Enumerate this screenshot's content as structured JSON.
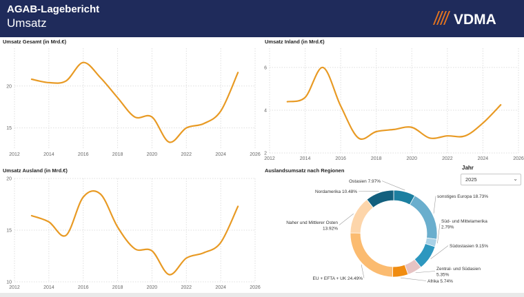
{
  "header": {
    "title": "AGAB-Lagebericht",
    "subtitle": "Umsatz",
    "logo_text": "VDMA",
    "bg_color": "#1f2b5b",
    "logo_color": "#e8761e"
  },
  "filter": {
    "label": "Jahr",
    "selected": "2025",
    "chevron": "chevron-down-icon"
  },
  "line_color": "#e89a24",
  "chart_data": [
    {
      "id": "gesamt",
      "type": "line",
      "title": "Umsatz Gesamt (in Mrd.€)",
      "xlabel": "",
      "ylabel": "",
      "xlim": [
        2012,
        2026
      ],
      "ylim": [
        12.5,
        24.5
      ],
      "xticks": [
        "2012",
        "2014",
        "2016",
        "2018",
        "2020",
        "2022",
        "2024",
        "2026"
      ],
      "yticks": [
        15,
        20
      ],
      "grid": true,
      "x": [
        2013,
        2014,
        2015,
        2016,
        2017,
        2018,
        2019,
        2020,
        2021,
        2022,
        2023,
        2024,
        2025
      ],
      "y": [
        20.8,
        20.4,
        20.6,
        22.8,
        21.0,
        18.6,
        16.3,
        16.3,
        13.3,
        15.0,
        15.5,
        17.0,
        21.6
      ]
    },
    {
      "id": "inland",
      "type": "line",
      "title": "Umsatz Inland (in Mrd.€)",
      "xlabel": "",
      "ylabel": "",
      "xlim": [
        2012,
        2026
      ],
      "ylim": [
        2,
        6.9
      ],
      "xticks": [
        "2012",
        "2014",
        "2016",
        "2018",
        "2020",
        "2022",
        "2024",
        "2026"
      ],
      "yticks": [
        2,
        4,
        6
      ],
      "grid": true,
      "x": [
        2013,
        2014,
        2015,
        2016,
        2017,
        2018,
        2019,
        2020,
        2021,
        2022,
        2023,
        2024,
        2025
      ],
      "y": [
        4.4,
        4.6,
        6.0,
        4.2,
        2.7,
        3.0,
        3.1,
        3.2,
        2.7,
        2.8,
        2.8,
        3.4,
        4.25
      ]
    },
    {
      "id": "ausland",
      "type": "line",
      "title": "Umsatz Ausland (in Mrd.€)",
      "xlabel": "",
      "ylabel": "",
      "xlim": [
        2012,
        2026
      ],
      "ylim": [
        10,
        20
      ],
      "xticks": [
        "2012",
        "2014",
        "2016",
        "2018",
        "2020",
        "2022",
        "2024",
        "2026"
      ],
      "yticks": [
        10,
        15,
        20
      ],
      "grid": true,
      "x": [
        2013,
        2014,
        2015,
        2016,
        2017,
        2018,
        2019,
        2020,
        2021,
        2022,
        2023,
        2024,
        2025
      ],
      "y": [
        16.4,
        15.8,
        14.5,
        18.2,
        18.5,
        15.3,
        13.2,
        13.0,
        10.7,
        12.3,
        12.8,
        13.8,
        17.3
      ]
    },
    {
      "id": "regionen",
      "type": "pie",
      "title": "Auslandsumsatz nach Regionen",
      "slices": [
        {
          "label": "Ostasien 7.97%",
          "value": 7.97,
          "color": "#1c7fa0"
        },
        {
          "label": "sonstiges Europa 18.73%",
          "value": 18.73,
          "color": "#6aaecd"
        },
        {
          "label": "Süd- und Mittelamerika 2.79%",
          "value": 2.79,
          "color": "#a9d1e6"
        },
        {
          "label": "Südostasien 9.15%",
          "value": 9.15,
          "color": "#2d97bf"
        },
        {
          "label": "Zentral- und Südasien 5.35%",
          "value": 5.35,
          "color": "#e6c3c3"
        },
        {
          "label": "Afrika 5.74%",
          "value": 5.74,
          "color": "#f08c10"
        },
        {
          "label": "EU + EFTA + UK 24.49%",
          "value": 24.49,
          "color": "#fbbb70"
        },
        {
          "label": "Naher und Mittlerer Osten 13.92%",
          "value": 13.92,
          "color": "#fdd5aa"
        },
        {
          "label": "Nordamerika 10.48%",
          "value": 10.48,
          "color": "#13607e"
        }
      ]
    }
  ]
}
